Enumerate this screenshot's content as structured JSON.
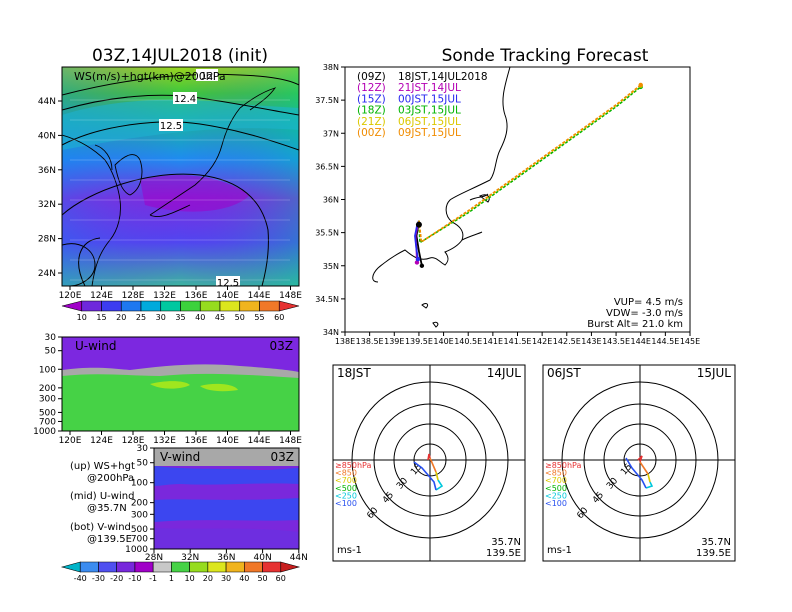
{
  "map_panel": {
    "title": "03Z,14JUL2018 (init)",
    "overlay_label": "WS(m/s)+hgt(km)@200hPa",
    "contour_labels": [
      "12",
      "12.4",
      "12.5",
      "12.5"
    ],
    "lat_labels": [
      "44N",
      "40N",
      "36N",
      "32N",
      "28N",
      "24N"
    ],
    "lon_labels": [
      "120E",
      "124E",
      "128E",
      "132E",
      "136E",
      "140E",
      "144E",
      "148E"
    ],
    "colorbar_labels": [
      "10",
      "15",
      "20",
      "25",
      "30",
      "35",
      "40",
      "45",
      "50",
      "55",
      "60"
    ],
    "colorbar_colors": [
      "#a000c8",
      "#6e28dc",
      "#3c3cf0",
      "#1e78f0",
      "#00aadc",
      "#00c8a0",
      "#3cd23c",
      "#96dc1e",
      "#dce61e",
      "#f0b41e",
      "#f07828",
      "#e63232"
    ]
  },
  "u_panel": {
    "title": "U-wind",
    "time": "03Z",
    "p_labels": [
      "30",
      "50",
      "100",
      "200",
      "300",
      "500",
      "700",
      "1000"
    ],
    "lon_labels": [
      "120E",
      "124E",
      "128E",
      "132E",
      "136E",
      "140E",
      "144E",
      "148E"
    ]
  },
  "v_panel": {
    "title": "V-wind",
    "time": "03Z",
    "p_labels": [
      "30",
      "50",
      "100",
      "200",
      "300",
      "500",
      "700",
      "1000"
    ],
    "lat_labels": [
      "28N",
      "32N",
      "36N",
      "40N",
      "44N"
    ]
  },
  "legend_text": {
    "up": "(up) WS+hgt",
    "up2": "@200hPa",
    "mid": "(mid) U-wind",
    "mid2": "@35.7N",
    "bot": "(bot) V-wind",
    "bot2": "@139.5E"
  },
  "bottom_colorbar": {
    "labels": [
      "-40",
      "-30",
      "-20",
      "-10",
      "-1",
      "1",
      "10",
      "20",
      "30",
      "40",
      "50",
      "60"
    ],
    "colors": [
      "#00b4c8",
      "#3c8cf0",
      "#5050f0",
      "#7828dc",
      "#a000c8",
      "#c8c8c8",
      "#46d246",
      "#96dc1e",
      "#dce61e",
      "#f0b41e",
      "#f07828",
      "#e63232",
      "#c81e1e"
    ]
  },
  "tracking": {
    "title": "Sonde Tracking Forecast",
    "lat_labels": [
      "38N",
      "37.5N",
      "37N",
      "36.5N",
      "36N",
      "35.5N",
      "35N",
      "34.5N",
      "34N"
    ],
    "lon_labels": [
      "138E",
      "138.5E",
      "139E",
      "139.5E",
      "140E",
      "140.5E",
      "141E",
      "141.5E",
      "142E",
      "142.5E",
      "143E",
      "143.5E",
      "144E",
      "144.5E",
      "145E"
    ],
    "legend": [
      {
        "code": "(09Z)",
        "text": "18JST,14JUL2018",
        "color": "#000000"
      },
      {
        "code": "(12Z)",
        "text": "21JST,14JUL",
        "color": "#b400b4"
      },
      {
        "code": "(15Z)",
        "text": "00JST,15JUL",
        "color": "#2828f0"
      },
      {
        "code": "(18Z)",
        "text": "03JST,15JUL",
        "color": "#00b400"
      },
      {
        "code": "(21Z)",
        "text": "06JST,15JUL",
        "color": "#dcc800"
      },
      {
        "code": "(00Z)",
        "text": "09JST,15JUL",
        "color": "#f08c00"
      }
    ],
    "vup": "VUP= 4.5 m/s",
    "vdw": "VDW= -3.0 m/s",
    "burst": "Burst Alt= 21.0 km"
  },
  "hodo_left": {
    "time": "18JST",
    "date": "14JUL",
    "lat": "35.7N",
    "lon": "139.5E",
    "unit": "ms-1",
    "ring_labels": [
      "15",
      "30",
      "45",
      "60"
    ],
    "levels": [
      "≥850hPa",
      "<850",
      "<700",
      "<500",
      "<250",
      "<100"
    ],
    "level_colors": [
      "#e63232",
      "#f07828",
      "#dcc800",
      "#00b400",
      "#00c8dc",
      "#2850f0"
    ]
  },
  "hodo_right": {
    "time": "06JST",
    "date": "15JUL",
    "lat": "35.7N",
    "lon": "139.5E",
    "unit": "ms-1",
    "ring_labels": [
      "15",
      "30",
      "45",
      "60"
    ],
    "levels": [
      "≥850hPa",
      "<850",
      "<700",
      "<500",
      "<250",
      "<100"
    ],
    "level_colors": [
      "#e63232",
      "#f07828",
      "#dcc800",
      "#00b400",
      "#00c8dc",
      "#2850f0"
    ]
  },
  "chart_data": [
    {
      "type": "heatmap",
      "title": "03Z,14JUL2018 (init)",
      "variable": "WS(m/s)+hgt(km)@200hPa",
      "x_range": [
        "120E",
        "150E"
      ],
      "y_range": [
        "22N",
        "48N"
      ],
      "colorbar": [
        10,
        15,
        20,
        25,
        30,
        35,
        40,
        45,
        50,
        55,
        60
      ],
      "contour_labels": [
        12,
        12.4,
        12.5,
        12.5
      ]
    },
    {
      "type": "heatmap",
      "title": "U-wind",
      "time": "03Z",
      "xlabel_ticks": [
        "120E",
        "124E",
        "128E",
        "132E",
        "136E",
        "140E",
        "144E",
        "148E"
      ],
      "ylabel_ticks": [
        30,
        50,
        100,
        200,
        300,
        500,
        700,
        1000
      ]
    },
    {
      "type": "heatmap",
      "title": "V-wind",
      "time": "03Z",
      "xlabel_ticks": [
        "28N",
        "32N",
        "36N",
        "40N",
        "44N"
      ],
      "ylabel_ticks": [
        30,
        50,
        100,
        200,
        300,
        500,
        700,
        1000
      ],
      "colorbar": [
        -40,
        -30,
        -20,
        -10,
        -1,
        1,
        10,
        20,
        30,
        40,
        50,
        60
      ]
    },
    {
      "type": "line",
      "title": "Sonde Tracking Forecast",
      "xlim": [
        138,
        145
      ],
      "ylim": [
        34,
        38
      ],
      "series": [
        {
          "name": "(09Z) 18JST,14JUL2018",
          "x": [
            139.5,
            139.48,
            139.45,
            139.5,
            139.56
          ],
          "y": [
            35.68,
            35.58,
            35.45,
            35.22,
            35.0
          ]
        },
        {
          "name": "(12Z) 21JST,14JUL",
          "x": [
            139.5,
            139.47,
            139.43,
            139.45,
            139.46
          ],
          "y": [
            35.68,
            35.58,
            35.45,
            35.25,
            35.05
          ]
        },
        {
          "name": "(15Z) 00JST,15JUL",
          "x": [
            139.5,
            139.46,
            139.42,
            139.45,
            139.48
          ],
          "y": [
            35.68,
            35.6,
            35.45,
            35.25,
            35.1
          ]
        },
        {
          "name": "(18Z) 03JST,15JUL",
          "x": [
            139.5,
            139.52,
            140.5,
            142.0,
            143.5,
            144.0
          ],
          "y": [
            35.68,
            35.35,
            35.8,
            36.6,
            37.4,
            37.7
          ]
        },
        {
          "name": "(21Z) 06JST,15JUL",
          "x": [
            139.5,
            139.55,
            140.5,
            142.0,
            143.5,
            144.0
          ],
          "y": [
            35.68,
            35.36,
            35.82,
            36.62,
            37.42,
            37.72
          ]
        },
        {
          "name": "(00Z) 09JST,15JUL",
          "x": [
            139.5,
            139.55,
            140.5,
            142.0,
            143.5,
            144.0
          ],
          "y": [
            35.68,
            35.36,
            35.83,
            36.63,
            37.43,
            37.73
          ]
        }
      ],
      "annotations": [
        "VUP= 4.5 m/s",
        "VDW= -3.0 m/s",
        "Burst Alt= 21.0 km"
      ]
    }
  ]
}
